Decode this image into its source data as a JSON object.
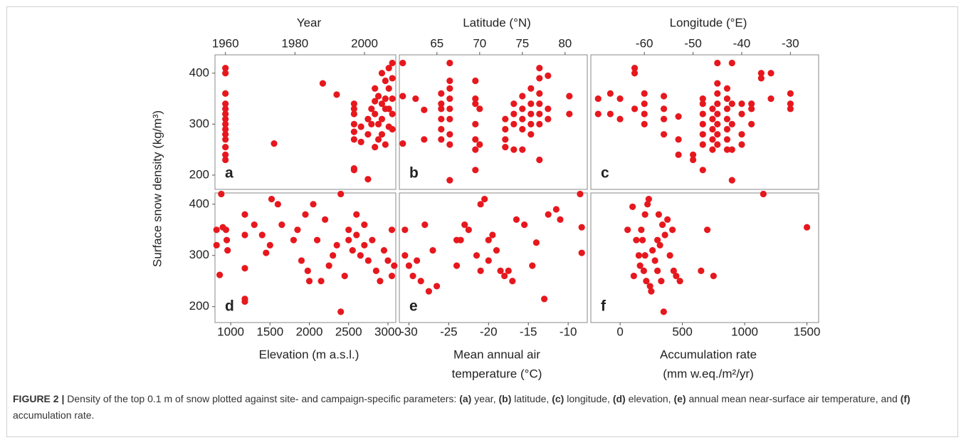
{
  "ylabel": "Surface snow density (kg/m³)",
  "caption": [
    {
      "text": "FIGURE 2 |",
      "bold": true
    },
    {
      "text": " Density of the top 0.1 m of snow plotted against site- and campaign-specific parameters: ",
      "bold": false
    },
    {
      "text": "(a)",
      "bold": true
    },
    {
      "text": " year, ",
      "bold": false
    },
    {
      "text": "(b)",
      "bold": true
    },
    {
      "text": " latitude, ",
      "bold": false
    },
    {
      "text": "(c)",
      "bold": true
    },
    {
      "text": " longitude, ",
      "bold": false
    },
    {
      "text": "(d)",
      "bold": true
    },
    {
      "text": " elevation, ",
      "bold": false
    },
    {
      "text": "(e)",
      "bold": true
    },
    {
      "text": " annual mean near-surface air temperature, and ",
      "bold": false
    },
    {
      "text": "(f)",
      "bold": true
    },
    {
      "text": " accumulation rate.",
      "bold": false
    }
  ],
  "chart_data": [
    {
      "type": "scatter",
      "panel_label": "a",
      "xlabel": [
        "Year"
      ],
      "xaxis_position": "top",
      "color": "#e6181e",
      "xlim": [
        1957,
        2009
      ],
      "ylim": [
        172,
        436
      ],
      "xticks": [
        1960,
        1980,
        2000
      ],
      "yticks": [
        200,
        300,
        400
      ],
      "x": [
        1960,
        1960,
        1960,
        1960,
        1960,
        1960,
        1960,
        1960,
        1960,
        1960,
        1960,
        1960,
        1960,
        1960,
        1974,
        1988,
        1992,
        1997,
        1997,
        1997,
        1997,
        1997,
        1997,
        1997,
        1997,
        1999,
        1999,
        2001,
        2001,
        2001,
        2002,
        2002,
        2003,
        2003,
        2003,
        2003,
        2004,
        2004,
        2004,
        2005,
        2005,
        2005,
        2005,
        2006,
        2006,
        2006,
        2006,
        2007,
        2007,
        2007,
        2007,
        2008,
        2008,
        2008,
        2008,
        2008
      ],
      "values": [
        410,
        400,
        360,
        340,
        330,
        320,
        310,
        300,
        290,
        280,
        270,
        255,
        240,
        230,
        262,
        380,
        358,
        340,
        330,
        320,
        300,
        285,
        270,
        213,
        210,
        295,
        265,
        310,
        280,
        192,
        330,
        300,
        370,
        345,
        320,
        255,
        355,
        300,
        270,
        400,
        340,
        310,
        280,
        385,
        350,
        330,
        260,
        410,
        370,
        330,
        295,
        420,
        390,
        350,
        320,
        290
      ]
    },
    {
      "type": "scatter",
      "panel_label": "b",
      "xlabel": [
        "Latitude (°N)"
      ],
      "xaxis_position": "top",
      "color": "#e6181e",
      "xlim": [
        60.6,
        82.6
      ],
      "ylim": [
        172,
        436
      ],
      "xticks": [
        65,
        70,
        75,
        80
      ],
      "x": [
        61,
        61,
        61,
        62.5,
        63.5,
        63.5,
        65.5,
        65.5,
        65.5,
        65.5,
        65.5,
        65.5,
        66.5,
        66.5,
        66.5,
        66.5,
        66.5,
        66.5,
        66.5,
        66.5,
        66.5,
        69.5,
        69.5,
        69.5,
        69.5,
        69.5,
        69.5,
        69.5,
        70,
        70,
        73,
        73,
        73,
        73,
        74,
        74,
        74,
        74,
        75,
        75,
        75,
        75,
        75,
        76,
        76,
        76,
        76,
        76,
        77,
        77,
        77,
        77,
        77,
        77,
        77,
        78,
        78,
        78,
        80.5,
        80.5
      ],
      "values": [
        420,
        355,
        262,
        350,
        328,
        270,
        360,
        340,
        330,
        310,
        290,
        270,
        420,
        385,
        370,
        350,
        330,
        310,
        280,
        260,
        190,
        385,
        350,
        340,
        300,
        270,
        250,
        210,
        330,
        260,
        310,
        290,
        270,
        255,
        340,
        320,
        300,
        250,
        355,
        330,
        310,
        290,
        250,
        370,
        340,
        320,
        300,
        280,
        410,
        390,
        360,
        340,
        320,
        300,
        230,
        395,
        330,
        310,
        355,
        320
      ]
    },
    {
      "type": "scatter",
      "panel_label": "c",
      "xlabel": [
        "Longitude (°E)"
      ],
      "xaxis_position": "top",
      "color": "#e6181e",
      "xlim": [
        -71,
        -24.2
      ],
      "ylim": [
        172,
        436
      ],
      "xticks": [
        -60,
        -50,
        -40,
        -30
      ],
      "x": [
        -69.5,
        -69.5,
        -67,
        -67,
        -65,
        -65,
        -62,
        -62,
        -62,
        -60,
        -60,
        -60,
        -60,
        -56,
        -56,
        -56,
        -56,
        -53,
        -53,
        -53,
        -50,
        -50,
        -48,
        -48,
        -48,
        -48,
        -48,
        -48,
        -48,
        -46,
        -46,
        -46,
        -46,
        -46,
        -45,
        -45,
        -45,
        -45,
        -45,
        -45,
        -45,
        -45,
        -43,
        -43,
        -43,
        -43,
        -43,
        -43,
        -43,
        -42,
        -42,
        -42,
        -42,
        -42,
        -40,
        -40,
        -40,
        -40,
        -38,
        -38,
        -38,
        -36,
        -36,
        -34,
        -34,
        -30,
        -30,
        -30
      ],
      "values": [
        350,
        320,
        360,
        320,
        350,
        310,
        410,
        400,
        330,
        360,
        340,
        320,
        300,
        355,
        330,
        310,
        280,
        240,
        270,
        315,
        230,
        240,
        210,
        350,
        340,
        320,
        300,
        280,
        260,
        330,
        310,
        290,
        270,
        250,
        420,
        380,
        360,
        340,
        320,
        300,
        280,
        260,
        370,
        350,
        330,
        310,
        290,
        270,
        250,
        420,
        340,
        300,
        250,
        190,
        340,
        320,
        280,
        260,
        300,
        340,
        330,
        400,
        390,
        400,
        350,
        360,
        340,
        330
      ]
    },
    {
      "type": "scatter",
      "panel_label": "d",
      "xlabel": [
        "Elevation (m a.s.l.)"
      ],
      "xaxis_position": "bottom",
      "color": "#e6181e",
      "xlim": [
        800,
        3100
      ],
      "ylim": [
        169,
        422
      ],
      "xticks": [
        1000,
        1500,
        2000,
        2500,
        3000
      ],
      "yticks": [
        200,
        300,
        400
      ],
      "x": [
        820,
        820,
        860,
        880,
        900,
        940,
        950,
        960,
        1180,
        1180,
        1180,
        1180,
        1180,
        1300,
        1400,
        1450,
        1500,
        1520,
        1600,
        1650,
        1800,
        1850,
        1900,
        1950,
        1980,
        2000,
        2050,
        2100,
        2150,
        2200,
        2250,
        2300,
        2350,
        2400,
        2400,
        2450,
        2500,
        2500,
        2550,
        2600,
        2600,
        2650,
        2700,
        2700,
        2750,
        2800,
        2850,
        2900,
        2950,
        3000,
        3050,
        3050,
        3080
      ],
      "values": [
        350,
        320,
        262,
        420,
        355,
        350,
        330,
        310,
        380,
        340,
        275,
        215,
        210,
        360,
        340,
        305,
        320,
        410,
        400,
        360,
        330,
        350,
        290,
        380,
        270,
        250,
        400,
        330,
        250,
        370,
        280,
        300,
        320,
        420,
        190,
        260,
        350,
        330,
        310,
        380,
        340,
        300,
        360,
        320,
        290,
        330,
        270,
        250,
        310,
        290,
        260,
        350,
        280
      ]
    },
    {
      "type": "scatter",
      "panel_label": "e",
      "xlabel": [
        "Mean annual air",
        "temperature (°C)"
      ],
      "xaxis_position": "bottom",
      "color": "#e6181e",
      "xlim": [
        -31.2,
        -7.6
      ],
      "ylim": [
        169,
        422
      ],
      "xticks": [
        -30,
        -25,
        -20,
        -15,
        -10
      ],
      "x": [
        -30.5,
        -30.5,
        -30,
        -29.5,
        -29,
        -28.5,
        -28,
        -27.5,
        -27,
        -26.5,
        -24,
        -24,
        -23.5,
        -23,
        -22.5,
        -21.5,
        -21,
        -21,
        -20.5,
        -20,
        -20,
        -19.5,
        -19,
        -18.5,
        -18,
        -17.5,
        -17,
        -16.5,
        -15.5,
        -14.5,
        -14,
        -13,
        -12.5,
        -11.5,
        -11,
        -8.5,
        -8.3,
        -8.3
      ],
      "values": [
        350,
        300,
        280,
        260,
        290,
        250,
        360,
        230,
        310,
        240,
        330,
        280,
        330,
        360,
        350,
        300,
        270,
        400,
        410,
        330,
        290,
        340,
        310,
        270,
        260,
        270,
        250,
        370,
        360,
        280,
        325,
        215,
        380,
        390,
        370,
        420,
        355,
        305
      ]
    },
    {
      "type": "scatter",
      "panel_label": "f",
      "xlabel": [
        "Accumulation rate",
        "(mm w.eq./m²/yr)"
      ],
      "xaxis_position": "bottom",
      "color": "#e6181e",
      "xlim": [
        -235,
        1594
      ],
      "ylim": [
        169,
        422
      ],
      "xticks": [
        0,
        500,
        1000,
        1500
      ],
      "x": [
        60,
        100,
        110,
        130,
        150,
        160,
        170,
        180,
        190,
        200,
        200,
        210,
        220,
        230,
        240,
        250,
        260,
        280,
        300,
        300,
        310,
        320,
        330,
        340,
        350,
        360,
        380,
        400,
        420,
        430,
        450,
        480,
        650,
        700,
        750,
        1150,
        1500
      ],
      "values": [
        350,
        395,
        260,
        330,
        300,
        280,
        350,
        330,
        270,
        300,
        380,
        250,
        400,
        410,
        240,
        230,
        310,
        290,
        270,
        330,
        380,
        320,
        250,
        360,
        190,
        340,
        370,
        300,
        350,
        270,
        260,
        250,
        270,
        350,
        260,
        420,
        355
      ]
    }
  ]
}
